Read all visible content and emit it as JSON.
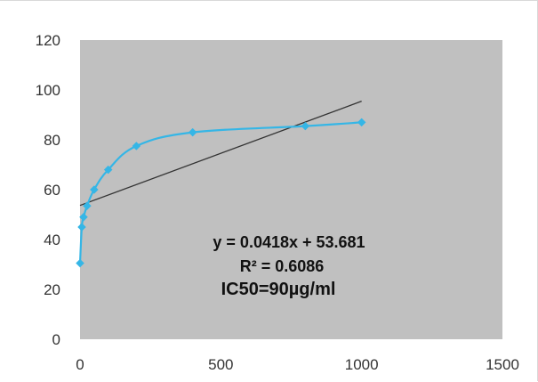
{
  "chart_data": {
    "type": "scatter",
    "title": "",
    "xlabel": "",
    "ylabel": "",
    "xlim": [
      0,
      1500
    ],
    "ylim": [
      0,
      120
    ],
    "x_ticks": [
      "0",
      "500",
      "1000",
      "1500"
    ],
    "y_ticks": [
      "0",
      "20",
      "40",
      "60",
      "80",
      "100",
      "120"
    ],
    "grid": false,
    "legend": "none",
    "plot_background": "#c0c0c0",
    "series": [
      {
        "color": "#35b6e6",
        "marker": "diamond",
        "line": "smooth",
        "points": [
          {
            "x": 0,
            "y": 30.5
          },
          {
            "x": 6.25,
            "y": 45
          },
          {
            "x": 12.5,
            "y": 49
          },
          {
            "x": 25,
            "y": 53.5
          },
          {
            "x": 50,
            "y": 60
          },
          {
            "x": 100,
            "y": 68
          },
          {
            "x": 200,
            "y": 77.5
          },
          {
            "x": 400,
            "y": 83
          },
          {
            "x": 800,
            "y": 85.5
          },
          {
            "x": 1000,
            "y": 87
          }
        ]
      }
    ],
    "trendline": {
      "type": "linear",
      "slope": 0.0418,
      "intercept": 53.681,
      "x_range": [
        0,
        1000
      ],
      "color": "#333333"
    },
    "annotations": {
      "equation": "y = 0.0418x + 53.681",
      "r_squared": "R² = 0.6086",
      "ic50": "IC50=90µg/ml"
    }
  }
}
